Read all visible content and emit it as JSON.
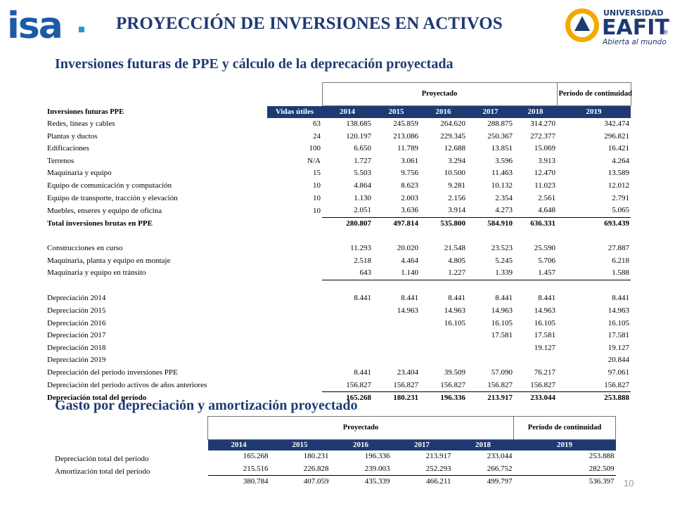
{
  "header": {
    "title": "PROYECCIÓN DE INVERSIONES EN ACTIVOS",
    "logo_left": "isa",
    "logo_right": {
      "line1": "UNIVERSIDAD",
      "line2": "EAFIT",
      "registered": "®",
      "tagline": "Abierta al mundo"
    }
  },
  "section1": {
    "title": "Inversiones futuras de PPE y cálculo de la deprecación proyectada",
    "table": {
      "group_headers": [
        "Proyectado",
        "Período de continuidad"
      ],
      "columns": [
        "Inversiones futuras PPE",
        "Vidas útiles",
        "2014",
        "2015",
        "2016",
        "2017",
        "2018",
        "2019"
      ],
      "rows": [
        {
          "label": "Redes, líneas y cables",
          "life": "63",
          "values": [
            "138.685",
            "245.859",
            "264.620",
            "288.875",
            "314.270",
            "342.474"
          ]
        },
        {
          "label": "Plantas y ductos",
          "life": "24",
          "values": [
            "120.197",
            "213.086",
            "229.345",
            "250.367",
            "272.377",
            "296.821"
          ]
        },
        {
          "label": "Edificaciones",
          "life": "100",
          "values": [
            "6.650",
            "11.789",
            "12.688",
            "13.851",
            "15.069",
            "16.421"
          ]
        },
        {
          "label": "Terrenos",
          "life": "N/A",
          "values": [
            "1.727",
            "3.061",
            "3.294",
            "3.596",
            "3.913",
            "4.264"
          ]
        },
        {
          "label": "Maquinaria y equipo",
          "life": "15",
          "values": [
            "5.503",
            "9.756",
            "10.500",
            "11.463",
            "12.470",
            "13.589"
          ]
        },
        {
          "label": "Equipo de comunicación y computación",
          "life": "10",
          "values": [
            "4.864",
            "8.623",
            "9.281",
            "10.132",
            "11.023",
            "12.012"
          ]
        },
        {
          "label": "Equipo de transporte, tracción y elevación",
          "life": "10",
          "values": [
            "1.130",
            "2.003",
            "2.156",
            "2.354",
            "2.561",
            "2.791"
          ]
        },
        {
          "label": "Muebles, enseres y equipo de oficina",
          "life": "10",
          "values": [
            "2.051",
            "3.636",
            "3.914",
            "4.273",
            "4.648",
            "5.065"
          ]
        },
        {
          "label": "Total inversiones brutas en PPE",
          "life": null,
          "values": [
            "280.807",
            "497.814",
            "535.800",
            "584.910",
            "636.331",
            "693.439"
          ]
        },
        null,
        {
          "label": "Construcciones en curso",
          "life": null,
          "values": [
            "11.293",
            "20.020",
            "21.548",
            "23.523",
            "25.590",
            "27.887"
          ]
        },
        {
          "label": "Maquinaria, planta y equipo en montaje",
          "life": null,
          "values": [
            "2.518",
            "4.464",
            "4.805",
            "5.245",
            "5.706",
            "6.218"
          ]
        },
        {
          "label": "Maquinaria y equipo en tránsito",
          "life": null,
          "values": [
            "643",
            "1.140",
            "1.227",
            "1.339",
            "1.457",
            "1.588"
          ]
        },
        null,
        {
          "label": "Depreciación 2014",
          "life": null,
          "values": [
            "8.441",
            "8.441",
            "8.441",
            "8.441",
            "8.441",
            "8.441"
          ]
        },
        {
          "label": "Depreciación 2015",
          "life": null,
          "values": [
            null,
            "14.963",
            "14.963",
            "14.963",
            "14.963",
            "14.963"
          ]
        },
        {
          "label": "Depreciación 2016",
          "life": null,
          "values": [
            null,
            null,
            "16.105",
            "16.105",
            "16.105",
            "16.105"
          ]
        },
        {
          "label": "Depreciación 2017",
          "life": null,
          "values": [
            null,
            null,
            null,
            "17.581",
            "17.581",
            "17.581"
          ]
        },
        {
          "label": "Depreciación 2018",
          "life": null,
          "values": [
            null,
            null,
            null,
            null,
            "19.127",
            "19.127"
          ]
        },
        {
          "label": "Depreciación 2019",
          "life": null,
          "values": [
            null,
            null,
            null,
            null,
            null,
            "20.844"
          ]
        },
        {
          "label": "Depreciación del período inversiones PPE",
          "life": null,
          "values": [
            "8.441",
            "23.404",
            "39.509",
            "57.090",
            "76.217",
            "97.061"
          ]
        },
        {
          "label": "Depreciación del período activos de años anteriores",
          "life": null,
          "values": [
            "156.827",
            "156.827",
            "156.827",
            "156.827",
            "156.827",
            "156.827"
          ]
        },
        {
          "label": "Depreciación total del período",
          "life": null,
          "values": [
            "165.268",
            "180.231",
            "196.336",
            "213.917",
            "233.044",
            "253.888"
          ]
        }
      ]
    }
  },
  "section2": {
    "title": "Gasto por depreciación y amortización proyectado",
    "table": {
      "group_headers": [
        "Proyectado",
        "Período de continuidad"
      ],
      "columns": [
        "2014",
        "2015",
        "2016",
        "2017",
        "2018",
        "2019"
      ],
      "row_labels": [
        "Depreciación total del período",
        "Amortización total del período"
      ],
      "rows": [
        [
          "165.268",
          "180.231",
          "196.336",
          "213.917",
          "233.044",
          "253.888"
        ],
        [
          "215.516",
          "226.828",
          "239.003",
          "252.293",
          "266.752",
          "282.509"
        ],
        [
          "380.784",
          "407.059",
          "435.339",
          "466.211",
          "499.797",
          "536.397"
        ]
      ]
    }
  },
  "page_number": "10"
}
